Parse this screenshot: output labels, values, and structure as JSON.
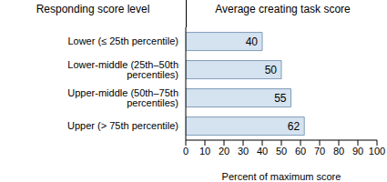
{
  "chart_data": {
    "type": "bar",
    "orientation": "horizontal",
    "title": "Average creating task score",
    "ylabel": "Responding score level",
    "xlabel": "Percent of maximum score",
    "categories": [
      "Lower (≤ 25th percentile)",
      "Lower-middle (25th–50th percentiles)",
      "Upper-middle (50th–75th percentiles)",
      "Upper (> 75th percentile)"
    ],
    "values": [
      40,
      50,
      55,
      62
    ],
    "color": "#d5e2ef",
    "xlim": [
      0,
      100
    ],
    "xticks": [
      0,
      10,
      20,
      30,
      40,
      50,
      60,
      70,
      80,
      90,
      100
    ],
    "data_labels": true,
    "grid": false
  }
}
